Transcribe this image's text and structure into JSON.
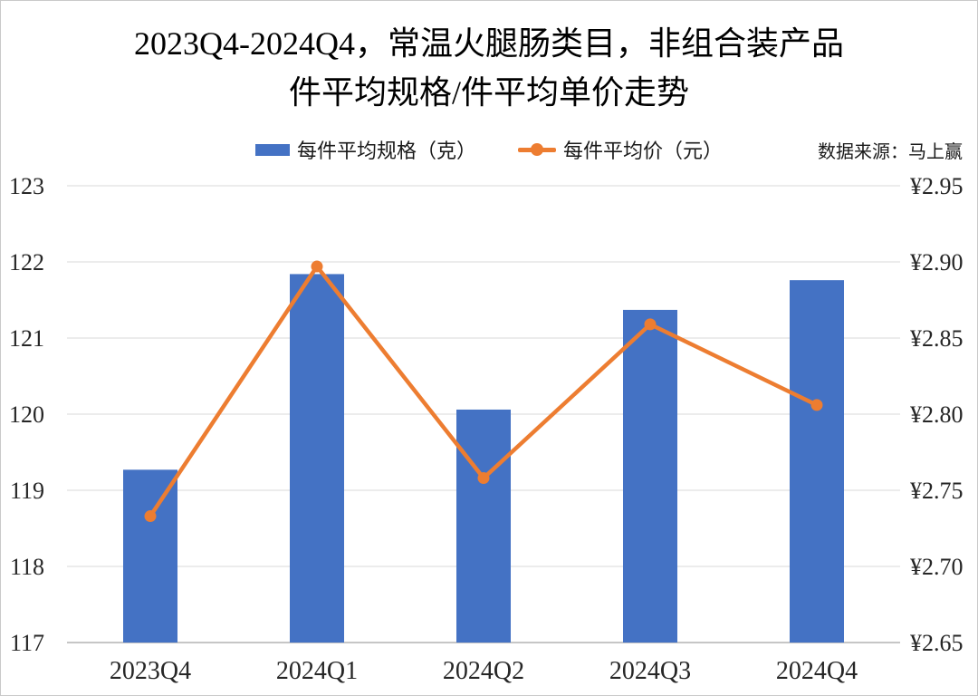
{
  "title": {
    "line1": "2023Q4-2024Q4，常温火腿肠类目，非组合装产品",
    "line2": "件平均规格/件平均单价走势"
  },
  "legend": [
    {
      "label": "每件平均规格（克）",
      "type": "bar",
      "color": "#4472C4"
    },
    {
      "label": "每件平均价（元）",
      "type": "line",
      "color": "#ED7D31"
    }
  ],
  "source_note": "数据来源：马上赢",
  "chart_data": {
    "type": "bar+line dual-axis combo",
    "title": "2023Q4-2024Q4，常温火腿肠类目，非组合装产品件平均规格/件平均单价走势",
    "categories": [
      "2023Q4",
      "2024Q1",
      "2024Q2",
      "2024Q3",
      "2024Q4"
    ],
    "series": [
      {
        "name": "每件平均规格（克）",
        "type": "bar",
        "axis": "left",
        "color": "#4472C4",
        "values": [
          119.27,
          121.84,
          120.06,
          121.37,
          121.76
        ]
      },
      {
        "name": "每件平均价（元）",
        "type": "line",
        "axis": "right",
        "color": "#ED7D31",
        "values": [
          2.733,
          2.897,
          2.758,
          2.859,
          2.806
        ]
      }
    ],
    "left_axis": {
      "min": 117,
      "max": 123,
      "tick_step": 1,
      "tick_labels_top_to_bottom": [
        "123",
        "122",
        "121",
        "120",
        "119",
        "118",
        "117"
      ]
    },
    "right_axis": {
      "min": 2.65,
      "max": 2.95,
      "tick_step": 0.05,
      "tick_labels_top_to_bottom": [
        "¥2.95",
        "¥2.90",
        "¥2.85",
        "¥2.80",
        "¥2.75",
        "¥2.70",
        "¥2.65"
      ]
    },
    "grid": true,
    "legend_position": "top"
  },
  "colors": {
    "bar": "#4472C4",
    "line": "#ED7D31",
    "gridline": "#d9d9d9",
    "axis_line": "#b3b3b3",
    "text": "#262626"
  }
}
